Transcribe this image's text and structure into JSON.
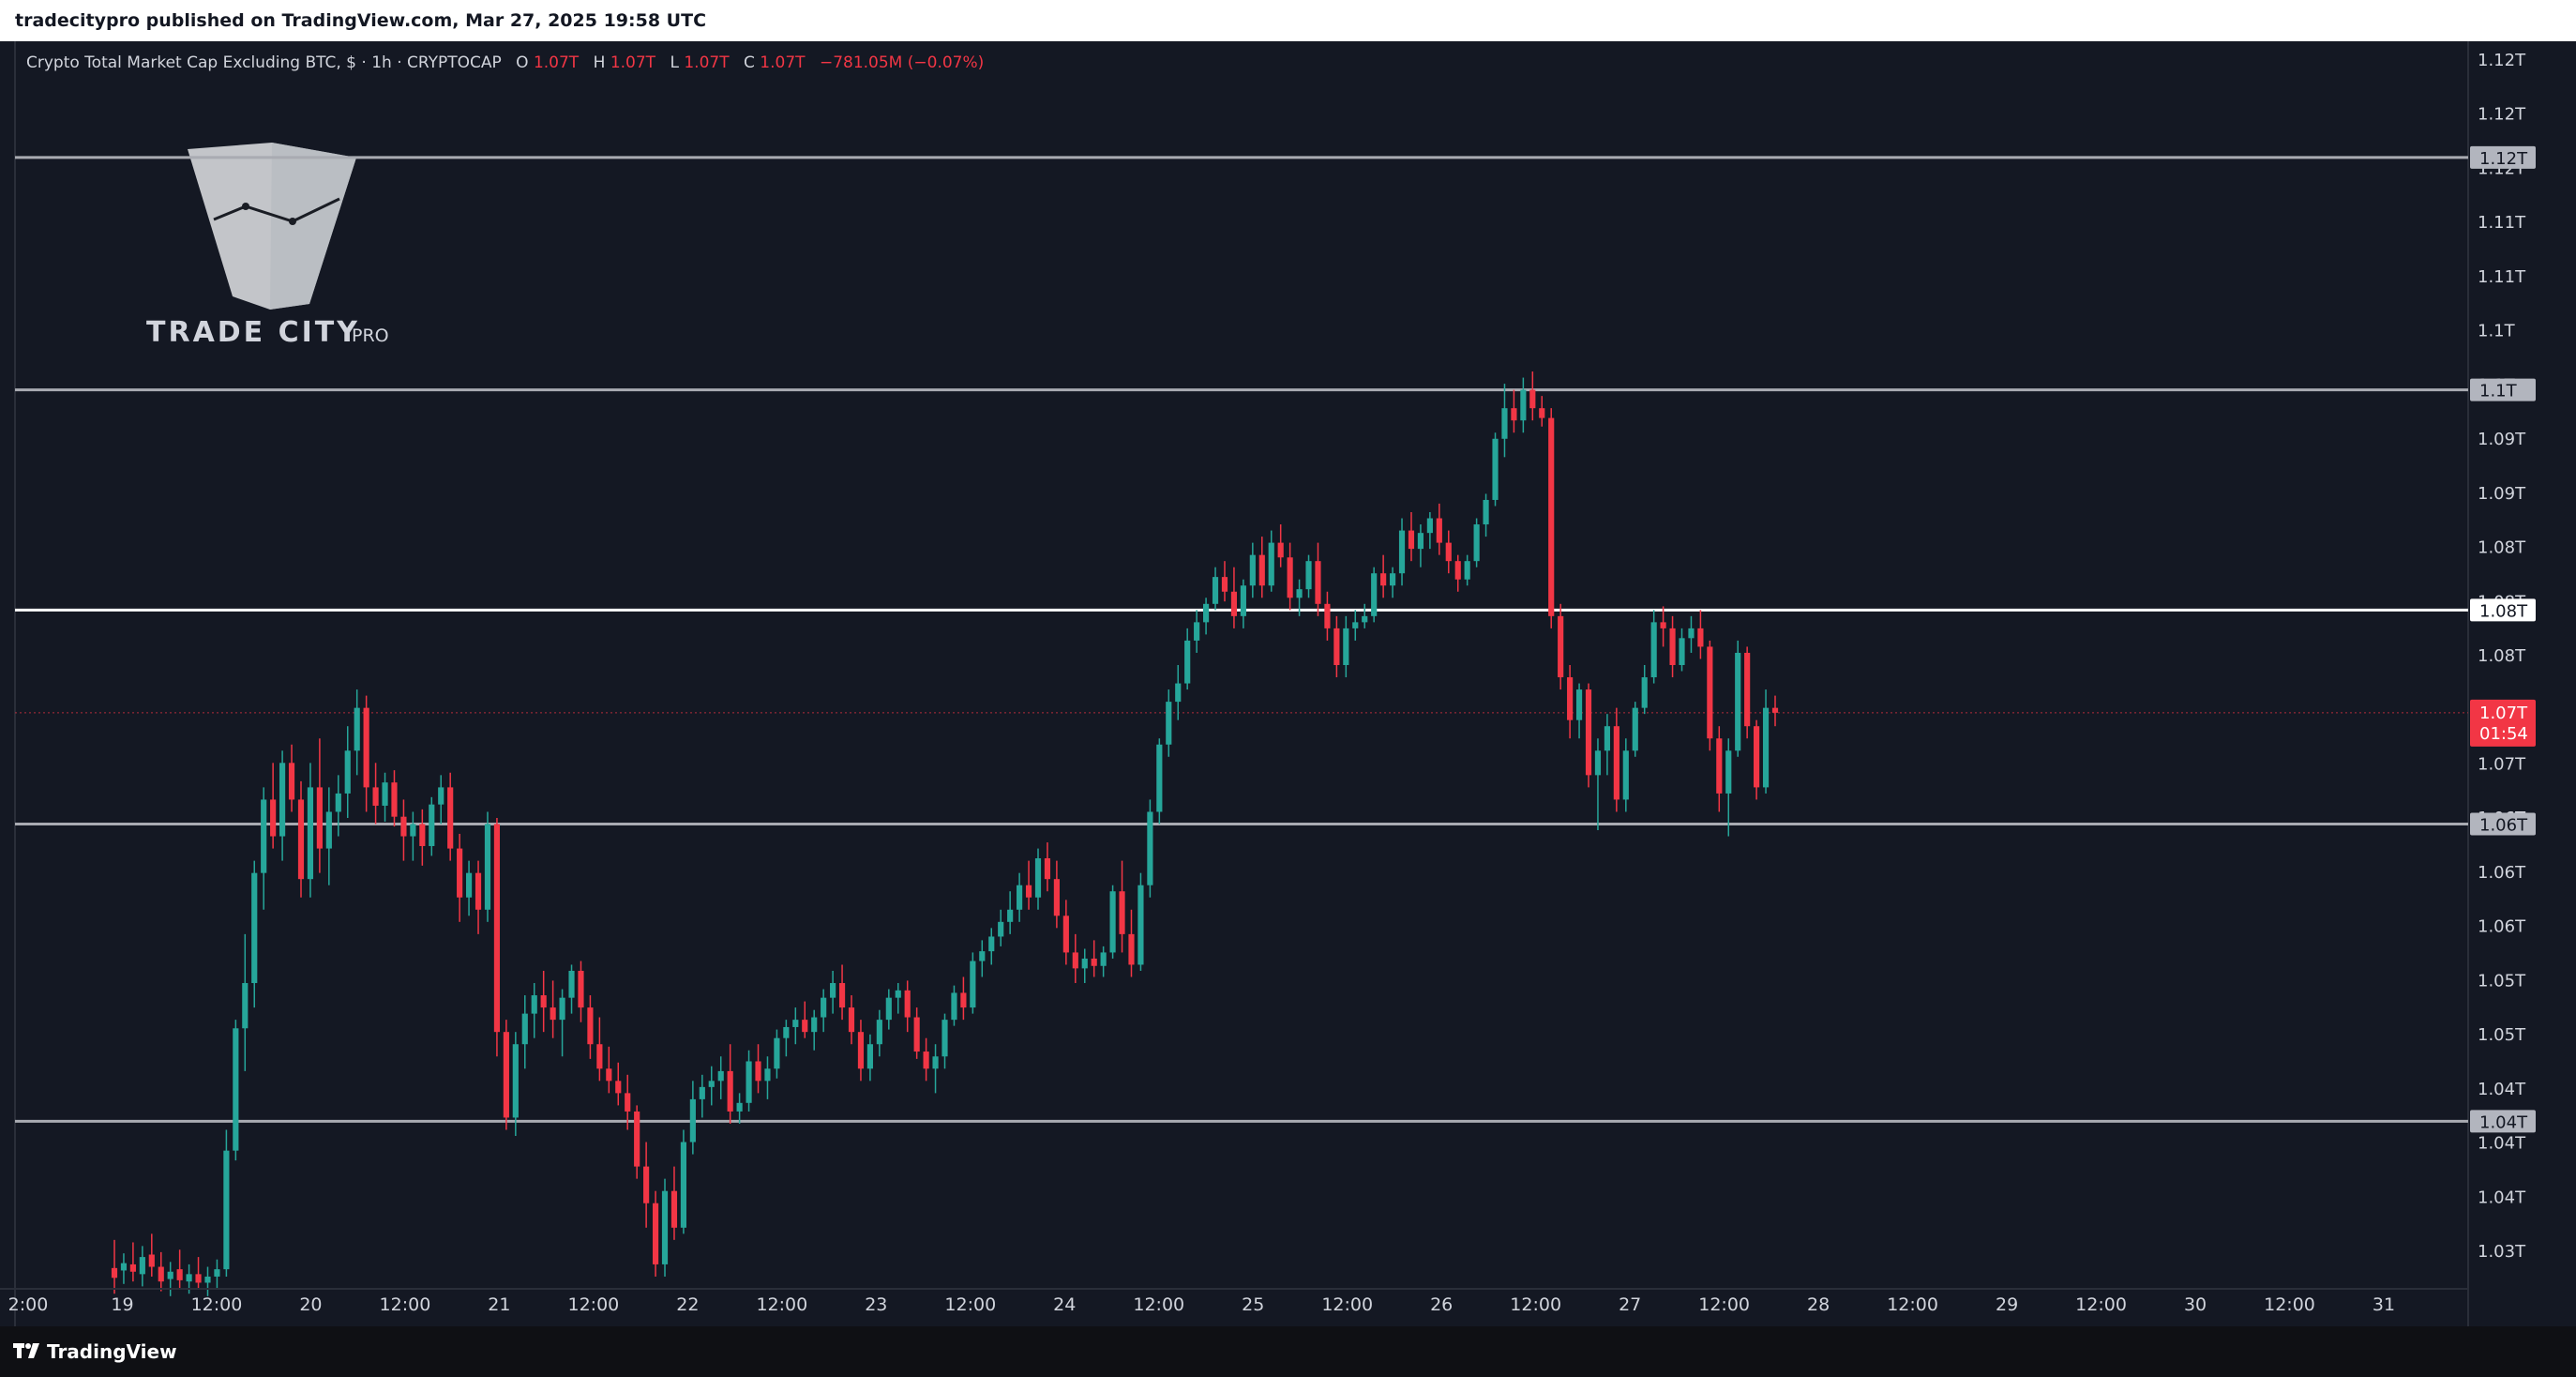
{
  "header": {
    "published_text": "tradecitypro published on TradingView.com, Mar 27, 2025 19:58 UTC"
  },
  "legend": {
    "symbol": "Crypto Total Market Cap Excluding BTC, $ · 1h · CRYPTOCAP",
    "o_label": "O",
    "o_value": "1.07T",
    "h_label": "H",
    "h_value": "1.07T",
    "l_label": "L",
    "l_value": "1.07T",
    "c_label": "C",
    "c_value": "1.07T",
    "change": "−781.05M (−0.07%)"
  },
  "watermark": {
    "brand": "TRADE CITY",
    "suffix": "PRO"
  },
  "price_axis": {
    "tick_labels": [
      "1.12T",
      "1.12T",
      "1.12T",
      "1.11T",
      "1.11T",
      "1.1T",
      "1.1T",
      "1.09T",
      "1.09T",
      "1.08T",
      "1.08T",
      "1.08T",
      "1.07T",
      "1.07T",
      "1.06T",
      "1.06T",
      "1.06T",
      "1.05T",
      "1.05T",
      "1.04T",
      "1.04T",
      "1.04T",
      "1.03T"
    ],
    "level_badges": [
      "1.12T",
      "1.1T",
      "1.08T",
      "1.06T",
      "1.04T"
    ],
    "current_price": "1.07T",
    "countdown": "01:54"
  },
  "time_axis": {
    "labels": [
      "2:00",
      "19",
      "12:00",
      "20",
      "12:00",
      "21",
      "12:00",
      "22",
      "12:00",
      "23",
      "12:00",
      "24",
      "12:00",
      "25",
      "12:00",
      "26",
      "12:00",
      "27",
      "12:00",
      "28",
      "12:00",
      "29",
      "12:00",
      "30",
      "12:00",
      "31"
    ]
  },
  "footer": {
    "brand": "TradingView"
  },
  "colors": {
    "up": "#26a69a",
    "down": "#f23645",
    "background": "#141823",
    "level_line": "#a9abb2",
    "key_level_line": "#ffffff"
  },
  "chart_data": {
    "type": "candlestick",
    "title": "Crypto Total Market Cap Excluding BTC, $ · 1h · CRYPTOCAP",
    "timeframe": "1h",
    "unit": "T",
    "x_range": [
      "Mar 18 12:00",
      "Mar 31 12:00"
    ],
    "ylim": [
      1.025,
      1.127
    ],
    "horizontal_levels": [
      1.1175,
      1.0985,
      1.0805,
      1.063,
      1.0387
    ],
    "key_level": 1.0805,
    "last_price": 1.0721,
    "candles_ohlc": [
      [
        1.0267,
        1.029,
        1.0246,
        1.0259
      ],
      [
        1.0265,
        1.0279,
        1.0254,
        1.0271
      ],
      [
        1.027,
        1.0288,
        1.0256,
        1.0264
      ],
      [
        1.0262,
        1.0285,
        1.0252,
        1.0276
      ],
      [
        1.0278,
        1.0295,
        1.026,
        1.0268
      ],
      [
        1.0268,
        1.028,
        1.0248,
        1.0256
      ],
      [
        1.0258,
        1.0272,
        1.0244,
        1.0264
      ],
      [
        1.0266,
        1.0282,
        1.025,
        1.0257
      ],
      [
        1.0256,
        1.027,
        1.0246,
        1.0262
      ],
      [
        1.0262,
        1.0276,
        1.025,
        1.0255
      ],
      [
        1.0255,
        1.0268,
        1.0244,
        1.026
      ],
      [
        1.026,
        1.0274,
        1.025,
        1.0266
      ],
      [
        1.0266,
        1.038,
        1.026,
        1.0363
      ],
      [
        1.0363,
        1.047,
        1.0355,
        1.0463
      ],
      [
        1.0463,
        1.054,
        1.0428,
        1.05
      ],
      [
        1.05,
        1.06,
        1.048,
        1.059
      ],
      [
        1.059,
        1.066,
        1.056,
        1.065
      ],
      [
        1.065,
        1.068,
        1.061,
        1.062
      ],
      [
        1.062,
        1.069,
        1.06,
        1.068
      ],
      [
        1.068,
        1.0695,
        1.064,
        1.065
      ],
      [
        1.065,
        1.0665,
        1.057,
        1.0585
      ],
      [
        1.0585,
        1.068,
        1.057,
        1.066
      ],
      [
        1.066,
        1.07,
        1.059,
        1.061
      ],
      [
        1.061,
        1.066,
        1.058,
        1.064
      ],
      [
        1.064,
        1.067,
        1.062,
        1.0655
      ],
      [
        1.0655,
        1.071,
        1.0635,
        1.069
      ],
      [
        1.069,
        1.074,
        1.067,
        1.0725
      ],
      [
        1.0725,
        1.0735,
        1.064,
        1.066
      ],
      [
        1.066,
        1.068,
        1.063,
        1.0645
      ],
      [
        1.0645,
        1.0672,
        1.0632,
        1.0664
      ],
      [
        1.0664,
        1.0674,
        1.0628,
        1.0636
      ],
      [
        1.0636,
        1.065,
        1.06,
        1.062
      ],
      [
        1.062,
        1.064,
        1.06,
        1.063
      ],
      [
        1.063,
        1.0642,
        1.0596,
        1.0612
      ],
      [
        1.0612,
        1.0652,
        1.0604,
        1.0646
      ],
      [
        1.0646,
        1.067,
        1.063,
        1.066
      ],
      [
        1.066,
        1.0672,
        1.06,
        1.061
      ],
      [
        1.061,
        1.0622,
        1.055,
        1.057
      ],
      [
        1.057,
        1.06,
        1.0555,
        1.059
      ],
      [
        1.059,
        1.06,
        1.054,
        1.056
      ],
      [
        1.056,
        1.064,
        1.055,
        1.063
      ],
      [
        1.063,
        1.0635,
        1.044,
        1.046
      ],
      [
        1.046,
        1.047,
        1.038,
        1.039
      ],
      [
        1.039,
        1.046,
        1.0375,
        1.045
      ],
      [
        1.045,
        1.049,
        1.043,
        1.0475
      ],
      [
        1.0475,
        1.05,
        1.0455,
        1.049
      ],
      [
        1.049,
        1.051,
        1.046,
        1.048
      ],
      [
        1.048,
        1.0502,
        1.0455,
        1.047
      ],
      [
        1.047,
        1.0495,
        1.044,
        1.0488
      ],
      [
        1.0488,
        1.0515,
        1.0475,
        1.051
      ],
      [
        1.051,
        1.0518,
        1.0468,
        1.048
      ],
      [
        1.048,
        1.049,
        1.0438,
        1.045
      ],
      [
        1.045,
        1.0472,
        1.042,
        1.043
      ],
      [
        1.043,
        1.0448,
        1.041,
        1.042
      ],
      [
        1.042,
        1.0435,
        1.04,
        1.041
      ],
      [
        1.041,
        1.0425,
        1.038,
        1.0395
      ],
      [
        1.0395,
        1.04,
        1.034,
        1.035
      ],
      [
        1.035,
        1.037,
        1.03,
        1.032
      ],
      [
        1.032,
        1.033,
        1.026,
        1.027
      ],
      [
        1.027,
        1.034,
        1.026,
        1.033
      ],
      [
        1.033,
        1.035,
        1.029,
        1.03
      ],
      [
        1.03,
        1.038,
        1.0295,
        1.037
      ],
      [
        1.037,
        1.042,
        1.036,
        1.0405
      ],
      [
        1.0405,
        1.0425,
        1.039,
        1.0415
      ],
      [
        1.0415,
        1.0432,
        1.04,
        1.042
      ],
      [
        1.042,
        1.044,
        1.0405,
        1.0428
      ],
      [
        1.0428,
        1.045,
        1.0385,
        1.0395
      ],
      [
        1.0395,
        1.041,
        1.0385,
        1.0402
      ],
      [
        1.0402,
        1.0445,
        1.0395,
        1.0436
      ],
      [
        1.0436,
        1.045,
        1.041,
        1.042
      ],
      [
        1.042,
        1.044,
        1.0405,
        1.043
      ],
      [
        1.043,
        1.0462,
        1.0422,
        1.0455
      ],
      [
        1.0455,
        1.047,
        1.044,
        1.0464
      ],
      [
        1.0464,
        1.048,
        1.045,
        1.047
      ],
      [
        1.047,
        1.0485,
        1.0455,
        1.046
      ],
      [
        1.046,
        1.0478,
        1.0445,
        1.0472
      ],
      [
        1.0472,
        1.0495,
        1.046,
        1.0488
      ],
      [
        1.0488,
        1.051,
        1.0475,
        1.05
      ],
      [
        1.05,
        1.0515,
        1.047,
        1.048
      ],
      [
        1.048,
        1.049,
        1.045,
        1.046
      ],
      [
        1.046,
        1.047,
        1.042,
        1.043
      ],
      [
        1.043,
        1.0458,
        1.042,
        1.045
      ],
      [
        1.045,
        1.0478,
        1.044,
        1.047
      ],
      [
        1.047,
        1.0495,
        1.0462,
        1.0488
      ],
      [
        1.0488,
        1.05,
        1.0475,
        1.0494
      ],
      [
        1.0494,
        1.0502,
        1.046,
        1.0472
      ],
      [
        1.0472,
        1.048,
        1.0438,
        1.0444
      ],
      [
        1.0444,
        1.0455,
        1.042,
        1.043
      ],
      [
        1.043,
        1.045,
        1.041,
        1.044
      ],
      [
        1.044,
        1.0475,
        1.043,
        1.047
      ],
      [
        1.047,
        1.0498,
        1.0465,
        1.0492
      ],
      [
        1.0492,
        1.0505,
        1.047,
        1.048
      ],
      [
        1.048,
        1.0525,
        1.0475,
        1.0518
      ],
      [
        1.0518,
        1.0535,
        1.0505,
        1.0526
      ],
      [
        1.0526,
        1.0545,
        1.0515,
        1.0538
      ],
      [
        1.0538,
        1.056,
        1.053,
        1.055
      ],
      [
        1.055,
        1.0575,
        1.054,
        1.056
      ],
      [
        1.056,
        1.059,
        1.055,
        1.058
      ],
      [
        1.058,
        1.06,
        1.056,
        1.057
      ],
      [
        1.057,
        1.061,
        1.056,
        1.0602
      ],
      [
        1.0602,
        1.0615,
        1.0575,
        1.0585
      ],
      [
        1.0585,
        1.06,
        1.0545,
        1.0555
      ],
      [
        1.0555,
        1.0568,
        1.0515,
        1.0525
      ],
      [
        1.0525,
        1.054,
        1.05,
        1.0512
      ],
      [
        1.0512,
        1.0528,
        1.05,
        1.052
      ],
      [
        1.052,
        1.0535,
        1.0505,
        1.0514
      ],
      [
        1.0514,
        1.053,
        1.0505,
        1.0525
      ],
      [
        1.0525,
        1.058,
        1.052,
        1.0575
      ],
      [
        1.0575,
        1.06,
        1.0525,
        1.054
      ],
      [
        1.054,
        1.056,
        1.0505,
        1.0515
      ],
      [
        1.0515,
        1.059,
        1.051,
        1.058
      ],
      [
        1.058,
        1.065,
        1.057,
        1.064
      ],
      [
        1.064,
        1.07,
        1.063,
        1.0695
      ],
      [
        1.0695,
        1.074,
        1.0685,
        1.073
      ],
      [
        1.073,
        1.076,
        1.0715,
        1.0745
      ],
      [
        1.0745,
        1.079,
        1.074,
        1.078
      ],
      [
        1.078,
        1.0805,
        1.077,
        1.0795
      ],
      [
        1.0795,
        1.0815,
        1.0785,
        1.081
      ],
      [
        1.081,
        1.084,
        1.0805,
        1.0832
      ],
      [
        1.0832,
        1.0845,
        1.0812,
        1.082
      ],
      [
        1.082,
        1.084,
        1.079,
        1.08
      ],
      [
        1.08,
        1.083,
        1.079,
        1.0825
      ],
      [
        1.0825,
        1.086,
        1.0815,
        1.085
      ],
      [
        1.085,
        1.0865,
        1.0815,
        1.0825
      ],
      [
        1.0825,
        1.087,
        1.082,
        1.086
      ],
      [
        1.086,
        1.0875,
        1.084,
        1.0848
      ],
      [
        1.0848,
        1.086,
        1.0805,
        1.0815
      ],
      [
        1.0815,
        1.083,
        1.08,
        1.0822
      ],
      [
        1.0822,
        1.085,
        1.0815,
        1.0845
      ],
      [
        1.0845,
        1.086,
        1.08,
        1.081
      ],
      [
        1.081,
        1.082,
        1.078,
        1.079
      ],
      [
        1.079,
        1.08,
        1.075,
        1.076
      ],
      [
        1.076,
        1.08,
        1.075,
        1.079
      ],
      [
        1.079,
        1.0805,
        1.078,
        1.0795
      ],
      [
        1.0795,
        1.081,
        1.079,
        1.08
      ],
      [
        1.08,
        1.084,
        1.0795,
        1.0835
      ],
      [
        1.0835,
        1.085,
        1.0815,
        1.0825
      ],
      [
        1.0825,
        1.084,
        1.0815,
        1.0835
      ],
      [
        1.0835,
        1.088,
        1.0825,
        1.087
      ],
      [
        1.087,
        1.0885,
        1.0845,
        1.0855
      ],
      [
        1.0855,
        1.0875,
        1.084,
        1.0868
      ],
      [
        1.0868,
        1.0885,
        1.0855,
        1.088
      ],
      [
        1.088,
        1.0892,
        1.085,
        1.086
      ],
      [
        1.086,
        1.087,
        1.0835,
        1.0845
      ],
      [
        1.0845,
        1.085,
        1.082,
        1.083
      ],
      [
        1.083,
        1.085,
        1.0825,
        1.0845
      ],
      [
        1.0845,
        1.088,
        1.084,
        1.0875
      ],
      [
        1.0875,
        1.09,
        1.0865,
        1.0895
      ],
      [
        1.0895,
        1.095,
        1.089,
        1.0945
      ],
      [
        1.0945,
        1.099,
        1.093,
        1.097
      ],
      [
        1.097,
        1.0985,
        1.095,
        1.096
      ],
      [
        1.096,
        1.0995,
        1.095,
        1.0985
      ],
      [
        1.0985,
        1.1,
        1.096,
        1.097
      ],
      [
        1.097,
        1.098,
        1.0955,
        1.0962
      ],
      [
        1.0962,
        1.097,
        1.079,
        1.08
      ],
      [
        1.08,
        1.081,
        1.074,
        1.075
      ],
      [
        1.075,
        1.076,
        1.07,
        1.0715
      ],
      [
        1.0715,
        1.0745,
        1.07,
        1.074
      ],
      [
        1.074,
        1.0745,
        1.066,
        1.067
      ],
      [
        1.067,
        1.07,
        1.0625,
        1.069
      ],
      [
        1.069,
        1.072,
        1.067,
        1.071
      ],
      [
        1.071,
        1.0725,
        1.064,
        1.065
      ],
      [
        1.065,
        1.07,
        1.064,
        1.069
      ],
      [
        1.069,
        1.073,
        1.0685,
        1.0725
      ],
      [
        1.0725,
        1.076,
        1.072,
        1.075
      ],
      [
        1.075,
        1.0805,
        1.0745,
        1.0795
      ],
      [
        1.0795,
        1.0808,
        1.0775,
        1.079
      ],
      [
        1.079,
        1.08,
        1.075,
        1.076
      ],
      [
        1.076,
        1.079,
        1.0755,
        1.0782
      ],
      [
        1.0782,
        1.08,
        1.077,
        1.079
      ],
      [
        1.079,
        1.0805,
        1.0765,
        1.0775
      ],
      [
        1.0775,
        1.078,
        1.069,
        1.07
      ],
      [
        1.07,
        1.071,
        1.064,
        1.0655
      ],
      [
        1.0655,
        1.07,
        1.062,
        1.069
      ],
      [
        1.069,
        1.078,
        1.0685,
        1.077
      ],
      [
        1.077,
        1.0775,
        1.07,
        1.071
      ],
      [
        1.071,
        1.0715,
        1.065,
        1.066
      ],
      [
        1.066,
        1.074,
        1.0655,
        1.0725
      ],
      [
        1.0725,
        1.0735,
        1.071,
        1.0721
      ]
    ],
    "x_axis_labels": [
      "2:00",
      "19",
      "12:00",
      "20",
      "12:00",
      "21",
      "12:00",
      "22",
      "12:00",
      "23",
      "12:00",
      "24",
      "12:00",
      "25",
      "12:00",
      "26",
      "12:00",
      "27",
      "12:00",
      "28",
      "12:00",
      "29",
      "12:00",
      "30",
      "12:00",
      "31"
    ]
  }
}
